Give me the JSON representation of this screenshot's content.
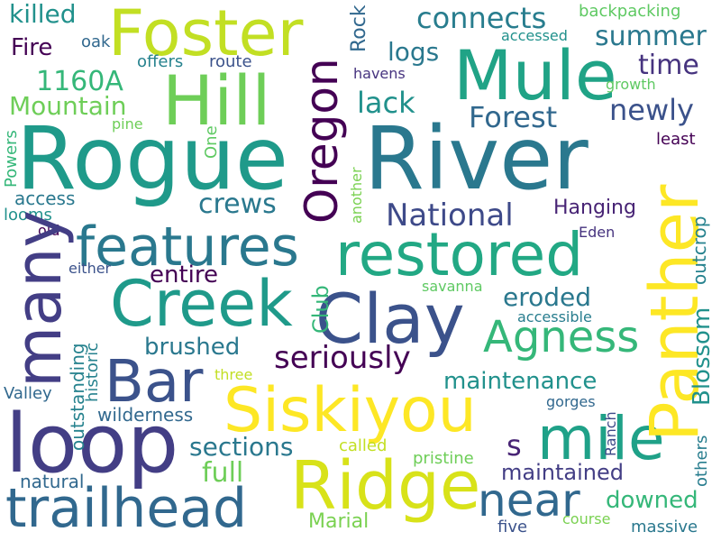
{
  "words": [
    {
      "id": "w-rogue",
      "text": "Rogue"
    },
    {
      "id": "w-river",
      "text": "River"
    },
    {
      "id": "w-foster",
      "text": "Foster"
    },
    {
      "id": "w-mule",
      "text": "Mule"
    },
    {
      "id": "w-hill",
      "text": "Hill"
    },
    {
      "id": "w-loop",
      "text": "loop"
    },
    {
      "id": "w-trailhead",
      "text": "trailhead"
    },
    {
      "id": "w-creek",
      "text": "Creek"
    },
    {
      "id": "w-clay",
      "text": "Clay"
    },
    {
      "id": "w-restored",
      "text": "restored"
    },
    {
      "id": "w-features",
      "text": "features"
    },
    {
      "id": "w-siskiyou",
      "text": "Siskiyou"
    },
    {
      "id": "w-ridge",
      "text": "Ridge"
    },
    {
      "id": "w-mile",
      "text": "mile"
    },
    {
      "id": "w-bar",
      "text": "Bar"
    },
    {
      "id": "w-many",
      "text": "many"
    },
    {
      "id": "w-panther",
      "text": "Panther"
    },
    {
      "id": "w-oregon",
      "text": "Oregon"
    },
    {
      "id": "w-agness",
      "text": "Agness"
    },
    {
      "id": "w-near",
      "text": "near"
    },
    {
      "id": "w-national",
      "text": "National"
    },
    {
      "id": "w-forest",
      "text": "Forest"
    },
    {
      "id": "w-newly",
      "text": "newly"
    },
    {
      "id": "w-summer",
      "text": "summer"
    },
    {
      "id": "w-time",
      "text": "time"
    },
    {
      "id": "w-connects",
      "text": "connects"
    },
    {
      "id": "w-logs",
      "text": "logs"
    },
    {
      "id": "w-lack",
      "text": "lack"
    },
    {
      "id": "w-1160a",
      "text": "1160A"
    },
    {
      "id": "w-mountain",
      "text": "Mountain"
    },
    {
      "id": "w-killed",
      "text": "killed"
    },
    {
      "id": "w-fire",
      "text": "Fire"
    },
    {
      "id": "w-oak",
      "text": "oak"
    },
    {
      "id": "w-offers",
      "text": "offers"
    },
    {
      "id": "w-route",
      "text": "route"
    },
    {
      "id": "w-backpacking",
      "text": "backpacking"
    },
    {
      "id": "w-accessed",
      "text": "accessed"
    },
    {
      "id": "w-rock",
      "text": "Rock"
    },
    {
      "id": "w-havens",
      "text": "havens"
    },
    {
      "id": "w-growth",
      "text": "growth"
    },
    {
      "id": "w-least",
      "text": "least"
    },
    {
      "id": "w-pine",
      "text": "pine"
    },
    {
      "id": "w-one",
      "text": "One"
    },
    {
      "id": "w-powers",
      "text": "Powers"
    },
    {
      "id": "w-access",
      "text": "access"
    },
    {
      "id": "w-looms",
      "text": "looms"
    },
    {
      "id": "w-old",
      "text": "old"
    },
    {
      "id": "w-crews",
      "text": "crews"
    },
    {
      "id": "w-another",
      "text": "another"
    },
    {
      "id": "w-hanging",
      "text": "Hanging"
    },
    {
      "id": "w-eden",
      "text": "Eden"
    },
    {
      "id": "w-outcrop",
      "text": "outcrop"
    },
    {
      "id": "w-blossom",
      "text": "Blossom"
    },
    {
      "id": "w-entire",
      "text": "entire"
    },
    {
      "id": "w-either",
      "text": "either"
    },
    {
      "id": "w-club",
      "text": "Club"
    },
    {
      "id": "w-eroded",
      "text": "eroded"
    },
    {
      "id": "w-savanna",
      "text": "savanna"
    },
    {
      "id": "w-accessible",
      "text": "accessible"
    },
    {
      "id": "w-brushed",
      "text": "brushed"
    },
    {
      "id": "w-seriously",
      "text": "seriously"
    },
    {
      "id": "w-maintenance",
      "text": "maintenance"
    },
    {
      "id": "w-outstanding",
      "text": "outstanding"
    },
    {
      "id": "w-historic",
      "text": "historic"
    },
    {
      "id": "w-valley",
      "text": "Valley"
    },
    {
      "id": "w-three",
      "text": "three"
    },
    {
      "id": "w-gorges",
      "text": "gorges"
    },
    {
      "id": "w-wilderness",
      "text": "wilderness"
    },
    {
      "id": "w-ranch",
      "text": "Ranch"
    },
    {
      "id": "w-s",
      "text": "s"
    },
    {
      "id": "w-sections",
      "text": "sections"
    },
    {
      "id": "w-called",
      "text": "called"
    },
    {
      "id": "w-pristine",
      "text": "pristine"
    },
    {
      "id": "w-full",
      "text": "full"
    },
    {
      "id": "w-maintained",
      "text": "maintained"
    },
    {
      "id": "w-natural",
      "text": "natural"
    },
    {
      "id": "w-downed",
      "text": "downed"
    },
    {
      "id": "w-others",
      "text": "others"
    },
    {
      "id": "w-marial",
      "text": "Marial"
    },
    {
      "id": "w-five",
      "text": "five"
    },
    {
      "id": "w-course",
      "text": "course"
    },
    {
      "id": "w-massive",
      "text": "massive"
    }
  ]
}
